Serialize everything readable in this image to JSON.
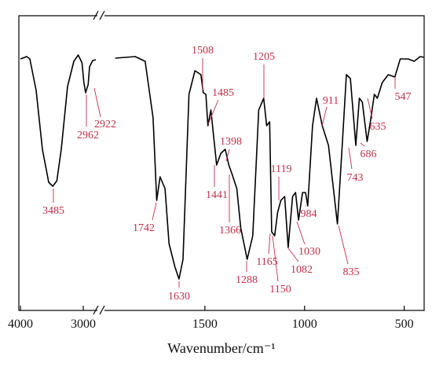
{
  "chart_data": {
    "type": "line",
    "x_label": "Wavenumber/cm⁻¹",
    "xlim": [
      4000,
      400
    ],
    "xbreak": [
      2800,
      2000
    ],
    "xticks": [
      4000,
      3000,
      1500,
      1000,
      500
    ],
    "ylim": [
      0,
      375
    ],
    "line_color": "#000000",
    "annotation_color": "#c0304a",
    "series": [
      {
        "color": "#000000",
        "x": [
          4000,
          3900,
          3850,
          3750,
          3650,
          3550,
          3485,
          3420,
          3350,
          3250,
          3150,
          3080,
          3020,
          2990,
          2962,
          2940,
          2922,
          2900,
          2850,
          2800
        ],
        "values": [
          320,
          323,
          320,
          280,
          205,
          163,
          158,
          165,
          205,
          285,
          317,
          325,
          315,
          290,
          277,
          283,
          287,
          310,
          318,
          319
        ]
      },
      {
        "color": "#000000",
        "x": [
          1950,
          1850,
          1800,
          1760,
          1742,
          1725,
          1700,
          1680,
          1650,
          1630,
          1610,
          1580,
          1550,
          1520,
          1508,
          1495,
          1485,
          1470,
          1441,
          1420,
          1398,
          1380,
          1366,
          1340,
          1320,
          1288,
          1260,
          1230,
          1205,
          1190,
          1175,
          1165,
          1150,
          1135,
          1119,
          1100,
          1082,
          1060,
          1045,
          1030,
          1010,
          995,
          984,
          960,
          940,
          911,
          880,
          835,
          810,
          790,
          770,
          743,
          725,
          710,
          686,
          670,
          650,
          635,
          610,
          580,
          547,
          520,
          480,
          450,
          420,
          400
        ],
        "values": [
          321,
          323,
          317,
          245,
          140,
          170,
          155,
          85,
          55,
          40,
          65,
          275,
          305,
          300,
          277,
          275,
          235,
          255,
          185,
          200,
          205,
          185,
          175,
          155,
          105,
          65,
          95,
          255,
          270,
          235,
          240,
          100,
          95,
          125,
          140,
          145,
          80,
          145,
          150,
          115,
          150,
          150,
          133,
          235,
          270,
          235,
          210,
          110,
          215,
          300,
          295,
          210,
          270,
          265,
          215,
          240,
          275,
          270,
          290,
          300,
          297,
          320,
          320,
          317,
          323,
          322
        ]
      }
    ],
    "annotations": [
      "3485",
      "2962",
      "2922",
      "1742",
      "1630",
      "1508",
      "1485",
      "1398",
      "1441",
      "1366",
      "1288",
      "1205",
      "1165",
      "1150",
      "1119",
      "1082",
      "1030",
      "984",
      "911",
      "835",
      "743",
      "686",
      "635",
      "547"
    ]
  }
}
